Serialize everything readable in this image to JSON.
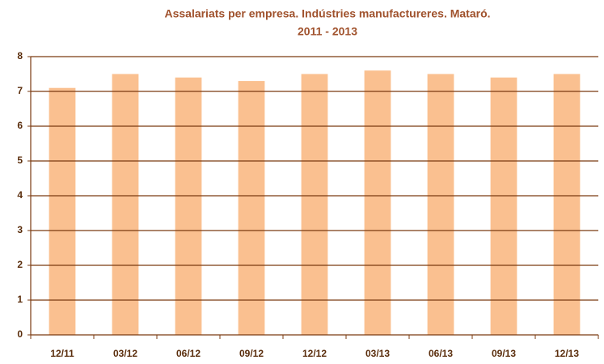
{
  "chart_data": {
    "type": "bar",
    "title": [
      "Assalariats per empresa. Indústries manufactureres. Mataró.",
      "2011 - 2013"
    ],
    "categories": [
      "12/11",
      "03/12",
      "06/12",
      "09/12",
      "12/12",
      "03/13",
      "06/13",
      "09/13",
      "12/13"
    ],
    "values": [
      7.1,
      7.5,
      7.4,
      7.3,
      7.5,
      7.6,
      7.5,
      7.4,
      7.5
    ],
    "color": "#fac090",
    "ylim": [
      0,
      8
    ],
    "yticks": [
      0,
      1,
      2,
      3,
      4,
      5,
      6,
      7,
      8
    ],
    "grid": true
  }
}
